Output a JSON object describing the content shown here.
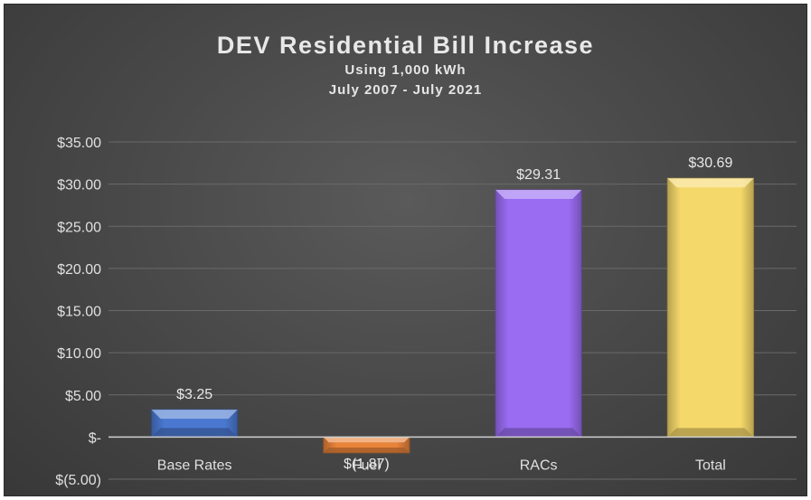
{
  "chart_data": {
    "type": "bar",
    "title": "DEV Residential Bill Increase",
    "subtitle_lines": [
      "Using 1,000 kWh",
      "July 2007 - July 2021"
    ],
    "categories": [
      "Base Rates",
      "Fuel",
      "RACs",
      "Total"
    ],
    "values": [
      3.25,
      -1.87,
      29.31,
      30.69
    ],
    "data_labels": [
      "$3.25",
      "$(1.87)",
      "$29.31",
      "$30.69"
    ],
    "colors": [
      "#4a78d0",
      "#e8833a",
      "#9a6cf2",
      "#f5d86a"
    ],
    "ylim": [
      -5,
      35
    ],
    "yticks": [
      35,
      30,
      25,
      20,
      15,
      10,
      5,
      0,
      -5
    ],
    "ytick_labels": [
      "$35.00",
      "$30.00",
      "$25.00",
      "$20.00",
      "$15.00",
      "$10.00",
      "$5.00",
      "$-",
      "$(5.00)"
    ],
    "grid": true,
    "legend": "none",
    "xlabel": "",
    "ylabel": ""
  }
}
